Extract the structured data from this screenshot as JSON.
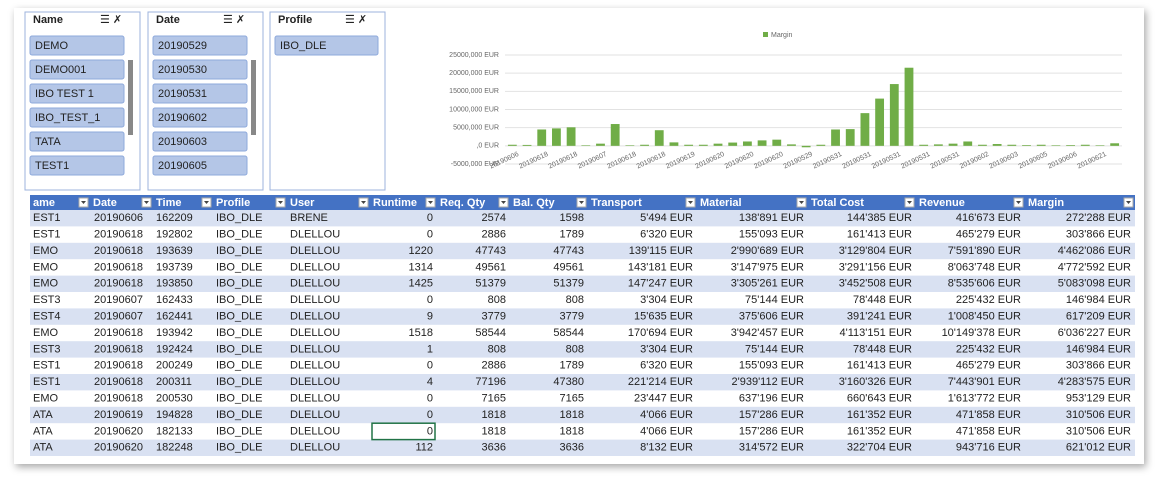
{
  "slicers": [
    {
      "title": "Name",
      "items": [
        "DEMO",
        "DEMO001",
        "IBO TEST 1",
        "IBO_TEST_1",
        "TATA",
        "TEST1"
      ]
    },
    {
      "title": "Date",
      "items": [
        "20190529",
        "20190530",
        "20190531",
        "20190602",
        "20190603",
        "20190605"
      ]
    },
    {
      "title": "Profile",
      "items": [
        "IBO_DLE"
      ]
    }
  ],
  "chart_data": {
    "type": "bar",
    "legend": "top",
    "color": "#70ad47",
    "grid": true,
    "series": [
      {
        "name": "Margin",
        "color": "#70ad47",
        "values": [
          300,
          250,
          4500,
          4800,
          5100,
          150,
          600,
          6000,
          150,
          300,
          4300,
          950,
          300,
          300,
          600,
          900,
          1200,
          1500,
          1700,
          400,
          -400,
          300,
          4500,
          4600,
          9000,
          13000,
          17000,
          21500,
          300,
          400,
          600,
          1200,
          300,
          500,
          300,
          200,
          300,
          150,
          200,
          300,
          150,
          700
        ]
      }
    ],
    "categories": [
      "20190606",
      null,
      "20190618",
      null,
      "20190618",
      null,
      "20190607",
      null,
      "20190618",
      null,
      "20190618",
      null,
      "20190619",
      null,
      "20190620",
      null,
      "20190620",
      null,
      "20190620",
      null,
      "20190529",
      null,
      "20190531",
      null,
      "20190531",
      null,
      "20190531",
      null,
      "20190531",
      null,
      "20190531",
      null,
      "20190602",
      null,
      "20190603",
      null,
      "20190605",
      null,
      "20190606",
      null,
      "20190621",
      null
    ],
    "ylim": [
      -5000,
      25000
    ],
    "yticks": [
      {
        "value": 25000,
        "label": "25000,000 EUR"
      },
      {
        "value": 20000,
        "label": "20000,000 EUR"
      },
      {
        "value": 15000,
        "label": "15000,000 EUR"
      },
      {
        "value": 10000,
        "label": "10000,000 EUR"
      },
      {
        "value": 5000,
        "label": "5000,000 EUR"
      },
      {
        "value": 0,
        "label": ",0 EUR"
      },
      {
        "value": -5000,
        "label": "-5000,000 EUR"
      }
    ]
  },
  "table": {
    "columns": [
      "ame",
      "Date",
      "Time",
      "Profile",
      "User",
      "Runtime",
      "Req. Qty",
      "Bal. Qty",
      "Transport",
      "Material",
      "Total Cost",
      "Revenue",
      "Margin"
    ],
    "rows": [
      [
        "EST1",
        "20190606",
        "162209",
        "IBO_DLE",
        "BRENE",
        "0",
        "2574",
        "1598",
        "5'494 EUR",
        "138'891 EUR",
        "144'385 EUR",
        "416'673 EUR",
        "272'288 EUR"
      ],
      [
        "EST1",
        "20190618",
        "192802",
        "IBO_DLE",
        "DLELLOU",
        "0",
        "2886",
        "1789",
        "6'320 EUR",
        "155'093 EUR",
        "161'413 EUR",
        "465'279 EUR",
        "303'866 EUR"
      ],
      [
        "EMO",
        "20190618",
        "193639",
        "IBO_DLE",
        "DLELLOU",
        "1220",
        "47743",
        "47743",
        "139'115 EUR",
        "2'990'689 EUR",
        "3'129'804 EUR",
        "7'591'890 EUR",
        "4'462'086 EUR"
      ],
      [
        "EMO",
        "20190618",
        "193739",
        "IBO_DLE",
        "DLELLOU",
        "1314",
        "49561",
        "49561",
        "143'181 EUR",
        "3'147'975 EUR",
        "3'291'156 EUR",
        "8'063'748 EUR",
        "4'772'592 EUR"
      ],
      [
        "EMO",
        "20190618",
        "193850",
        "IBO_DLE",
        "DLELLOU",
        "1425",
        "51379",
        "51379",
        "147'247 EUR",
        "3'305'261 EUR",
        "3'452'508 EUR",
        "8'535'606 EUR",
        "5'083'098 EUR"
      ],
      [
        "EST3",
        "20190607",
        "162433",
        "IBO_DLE",
        "DLELLOU",
        "0",
        "808",
        "808",
        "3'304 EUR",
        "75'144 EUR",
        "78'448 EUR",
        "225'432 EUR",
        "146'984 EUR"
      ],
      [
        "EST4",
        "20190607",
        "162441",
        "IBO_DLE",
        "DLELLOU",
        "9",
        "3779",
        "3779",
        "15'635 EUR",
        "375'606 EUR",
        "391'241 EUR",
        "1'008'450 EUR",
        "617'209 EUR"
      ],
      [
        "EMO",
        "20190618",
        "193942",
        "IBO_DLE",
        "DLELLOU",
        "1518",
        "58544",
        "58544",
        "170'694 EUR",
        "3'942'457 EUR",
        "4'113'151 EUR",
        "10'149'378 EUR",
        "6'036'227 EUR"
      ],
      [
        "EST3",
        "20190618",
        "192424",
        "IBO_DLE",
        "DLELLOU",
        "1",
        "808",
        "808",
        "3'304 EUR",
        "75'144 EUR",
        "78'448 EUR",
        "225'432 EUR",
        "146'984 EUR"
      ],
      [
        "EST1",
        "20190618",
        "200249",
        "IBO_DLE",
        "DLELLOU",
        "0",
        "2886",
        "1789",
        "6'320 EUR",
        "155'093 EUR",
        "161'413 EUR",
        "465'279 EUR",
        "303'866 EUR"
      ],
      [
        "EST1",
        "20190618",
        "200311",
        "IBO_DLE",
        "DLELLOU",
        "4",
        "77196",
        "47380",
        "221'214 EUR",
        "2'939'112 EUR",
        "3'160'326 EUR",
        "7'443'901 EUR",
        "4'283'575 EUR"
      ],
      [
        "EMO",
        "20190618",
        "200530",
        "IBO_DLE",
        "DLELLOU",
        "0",
        "7165",
        "7165",
        "23'447 EUR",
        "637'196 EUR",
        "660'643 EUR",
        "1'613'772 EUR",
        "953'129 EUR"
      ],
      [
        "ATA",
        "20190619",
        "194828",
        "IBO_DLE",
        "DLELLOU",
        "0",
        "1818",
        "1818",
        "4'066 EUR",
        "157'286 EUR",
        "161'352 EUR",
        "471'858 EUR",
        "310'506 EUR"
      ],
      [
        "ATA",
        "20190620",
        "182133",
        "IBO_DLE",
        "DLELLOU",
        "0",
        "1818",
        "1818",
        "4'066 EUR",
        "157'286 EUR",
        "161'352 EUR",
        "471'858 EUR",
        "310'506 EUR"
      ],
      [
        "ATA",
        "20190620",
        "182248",
        "IBO_DLE",
        "DLELLOU",
        "112",
        "3636",
        "3636",
        "8'132 EUR",
        "314'572 EUR",
        "322'704 EUR",
        "943'716 EUR",
        "621'012 EUR"
      ]
    ]
  }
}
